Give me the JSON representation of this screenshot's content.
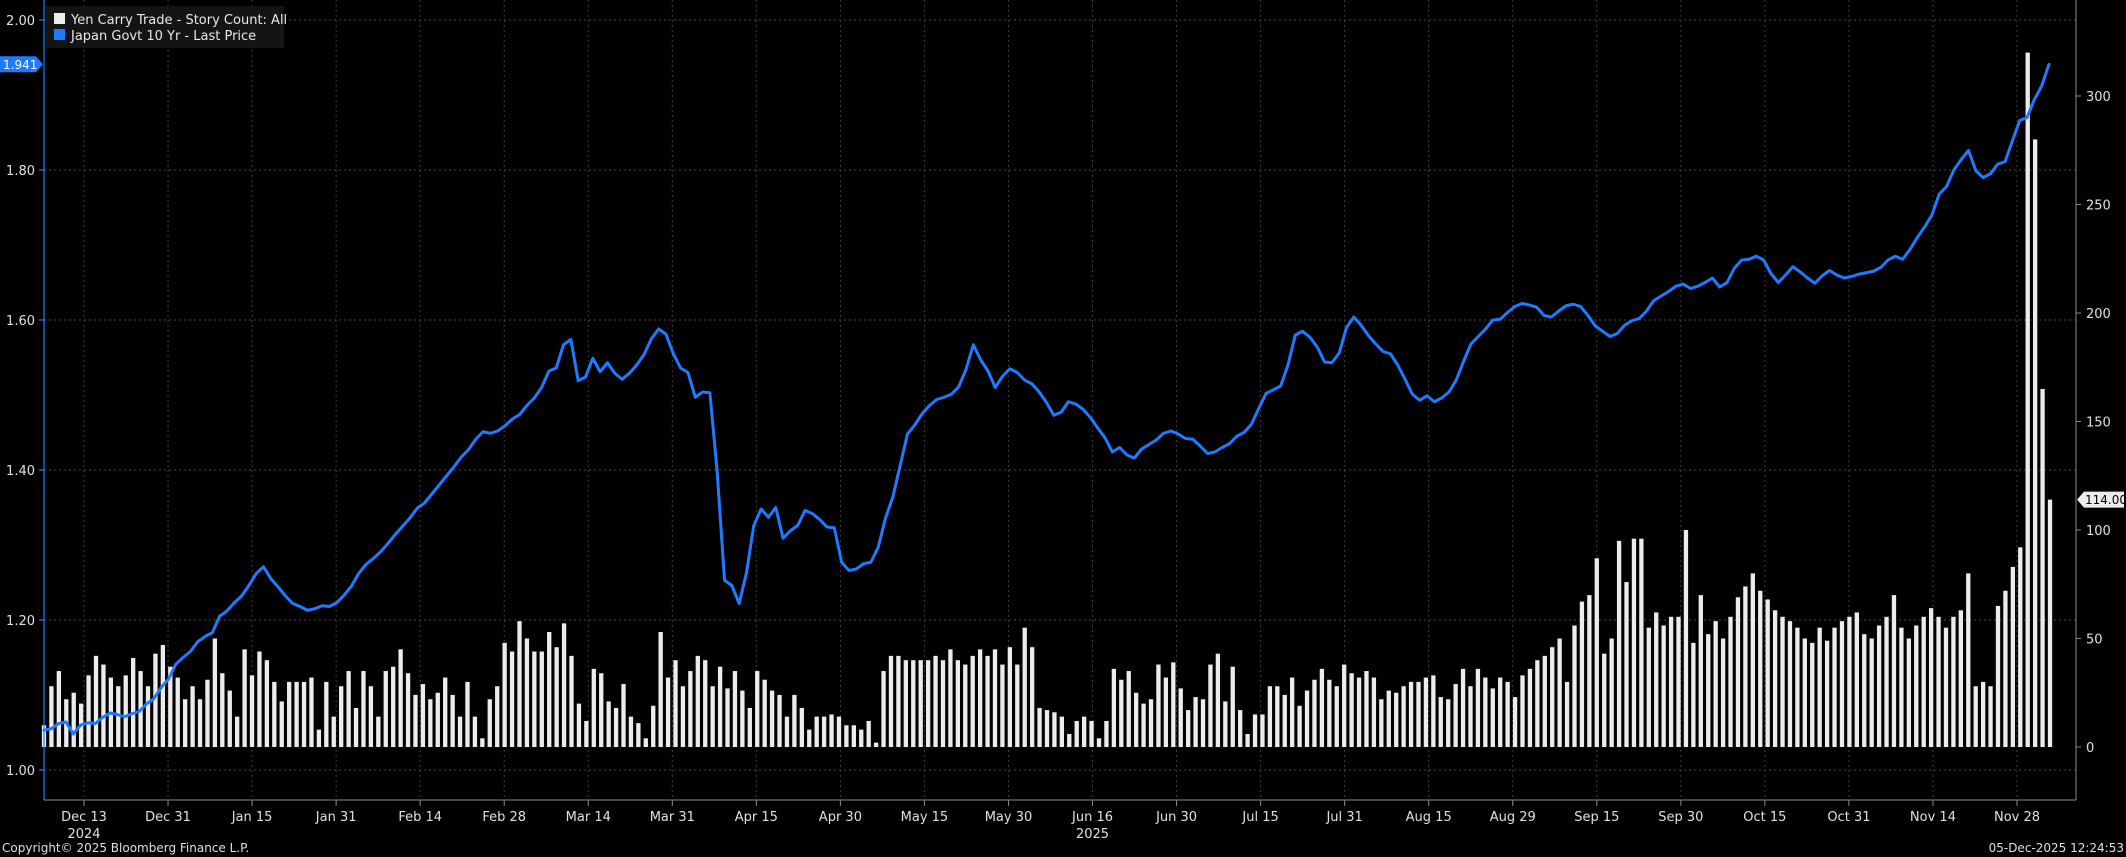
{
  "chart_data": {
    "type": "bar+line",
    "legend": [
      {
        "label": "Yen Carry Trade - Story Count: All",
        "color": "#ececec"
      },
      {
        "label": "Japan Govt 10 Yr - Last Price",
        "color": "#1e7bff"
      }
    ],
    "left_axis": {
      "ticks": [
        1.0,
        1.2,
        1.4,
        1.6,
        1.8,
        2.0
      ],
      "labels": [
        "1.00",
        "1.20",
        "1.40",
        "1.60",
        "1.80",
        "2.00"
      ],
      "range": [
        1.0,
        2.0
      ]
    },
    "right_axis": {
      "ticks": [
        0,
        50,
        100,
        150,
        200,
        250,
        300
      ],
      "labels": [
        "0",
        "50",
        "100",
        "150",
        "200",
        "250",
        "300"
      ],
      "range": [
        0,
        330
      ]
    },
    "x_ticks": [
      "Dec 13",
      "Dec 31",
      "Jan 15",
      "Jan 31",
      "Feb 14",
      "Feb 28",
      "Mar 14",
      "Mar 31",
      "Apr 15",
      "Apr 30",
      "May 15",
      "May 30",
      "Jun 16",
      "Jun 30",
      "Jul 15",
      "Jul 31",
      "Aug 15",
      "Aug 29",
      "Sep 15",
      "Sep 30",
      "Oct 15",
      "Oct 31",
      "Nov 14",
      "Nov 28"
    ],
    "years": [
      {
        "label": "2024",
        "under": "Dec 13"
      },
      {
        "label": "2025",
        "under": "Jun 16"
      }
    ],
    "last_line_badge": "1.941",
    "last_bar_badge": "114.00",
    "line_color": "#1e7bff",
    "bar_color": "#ececec",
    "grid": true,
    "bars": [
      10,
      28,
      35,
      22,
      25,
      20,
      33,
      42,
      38,
      32,
      28,
      33,
      41,
      35,
      28,
      43,
      47,
      37,
      32,
      22,
      28,
      22,
      31,
      50,
      34,
      26,
      14,
      45,
      33,
      44,
      40,
      30,
      21,
      30,
      30,
      30,
      32,
      8,
      30,
      14,
      28,
      35,
      18,
      35,
      28,
      14,
      35,
      37,
      45,
      34,
      24,
      29,
      22,
      25,
      32,
      24,
      14,
      30,
      14,
      4,
      22,
      28,
      48,
      44,
      58,
      50,
      44,
      44,
      53,
      46,
      57,
      42,
      20,
      12,
      36,
      34,
      21,
      18,
      29,
      14,
      11,
      4,
      19,
      53,
      32,
      40,
      28,
      35,
      42,
      40,
      28,
      37,
      27,
      35,
      26,
      18,
      35,
      31,
      26,
      24,
      14,
      24,
      18,
      8,
      14,
      14,
      15,
      14,
      10,
      10,
      8,
      12,
      2,
      35,
      42,
      42,
      40,
      40,
      40,
      40,
      42,
      40,
      45,
      40,
      38,
      42,
      45,
      42,
      45,
      38,
      46,
      38,
      55,
      46,
      18,
      17,
      16,
      14,
      6,
      12,
      14,
      12,
      4,
      12,
      36,
      31,
      35,
      25,
      20,
      22,
      38,
      32,
      39,
      27,
      17,
      23,
      22,
      38,
      43,
      21,
      37,
      17,
      6,
      15,
      15,
      28,
      28,
      24,
      32,
      19,
      26,
      31,
      36,
      31,
      28,
      38,
      34,
      32,
      35,
      32,
      22,
      26,
      25,
      28,
      30,
      30,
      32,
      33,
      23,
      22,
      29,
      36,
      28,
      36,
      32,
      27,
      32,
      30,
      23,
      33,
      36,
      40,
      42,
      46,
      50,
      30,
      56,
      67,
      70,
      87,
      43,
      50,
      95,
      76,
      96,
      96,
      55,
      62,
      56,
      60,
      60,
      100,
      48,
      70,
      52,
      58,
      50,
      60,
      69,
      74,
      80,
      72,
      68,
      63,
      60,
      58,
      55,
      50,
      48,
      55,
      49,
      55,
      58,
      60,
      62,
      52,
      50,
      56,
      60,
      70,
      55,
      50,
      56,
      60,
      64,
      60,
      55,
      60,
      63,
      80,
      28,
      30,
      28,
      65,
      72,
      83,
      92,
      320,
      280,
      165,
      114
    ],
    "line": [
      1.053,
      1.055,
      1.062,
      1.064,
      1.048,
      1.06,
      1.063,
      1.062,
      1.07,
      1.076,
      1.074,
      1.071,
      1.075,
      1.078,
      1.088,
      1.095,
      1.11,
      1.121,
      1.141,
      1.15,
      1.158,
      1.171,
      1.178,
      1.183,
      1.205,
      1.212,
      1.223,
      1.232,
      1.246,
      1.262,
      1.271,
      1.255,
      1.244,
      1.232,
      1.222,
      1.218,
      1.213,
      1.215,
      1.219,
      1.218,
      1.223,
      1.233,
      1.245,
      1.262,
      1.274,
      1.282,
      1.291,
      1.302,
      1.314,
      1.325,
      1.336,
      1.349,
      1.356,
      1.368,
      1.38,
      1.392,
      1.404,
      1.417,
      1.427,
      1.441,
      1.451,
      1.449,
      1.452,
      1.459,
      1.468,
      1.474,
      1.486,
      1.496,
      1.51,
      1.532,
      1.536,
      1.567,
      1.574,
      1.519,
      1.524,
      1.549,
      1.531,
      1.543,
      1.529,
      1.521,
      1.529,
      1.54,
      1.554,
      1.575,
      1.588,
      1.581,
      1.555,
      1.536,
      1.53,
      1.497,
      1.504,
      1.503,
      1.397,
      1.253,
      1.246,
      1.222,
      1.263,
      1.326,
      1.348,
      1.337,
      1.35,
      1.309,
      1.319,
      1.326,
      1.346,
      1.342,
      1.334,
      1.324,
      1.323,
      1.277,
      1.266,
      1.268,
      1.275,
      1.277,
      1.297,
      1.336,
      1.364,
      1.406,
      1.448,
      1.46,
      1.475,
      1.486,
      1.494,
      1.497,
      1.501,
      1.511,
      1.534,
      1.567,
      1.547,
      1.532,
      1.51,
      1.525,
      1.535,
      1.53,
      1.52,
      1.515,
      1.504,
      1.49,
      1.473,
      1.477,
      1.491,
      1.488,
      1.481,
      1.47,
      1.456,
      1.443,
      1.424,
      1.43,
      1.42,
      1.416,
      1.428,
      1.434,
      1.44,
      1.449,
      1.452,
      1.448,
      1.442,
      1.441,
      1.432,
      1.422,
      1.424,
      1.43,
      1.435,
      1.445,
      1.45,
      1.461,
      1.482,
      1.502,
      1.507,
      1.512,
      1.54,
      1.58,
      1.585,
      1.577,
      1.564,
      1.544,
      1.543,
      1.556,
      1.59,
      1.604,
      1.593,
      1.579,
      1.568,
      1.558,
      1.555,
      1.54,
      1.521,
      1.501,
      1.493,
      1.499,
      1.491,
      1.496,
      1.504,
      1.52,
      1.545,
      1.568,
      1.578,
      1.588,
      1.6,
      1.601,
      1.61,
      1.618,
      1.622,
      1.62,
      1.617,
      1.606,
      1.604,
      1.612,
      1.619,
      1.621,
      1.618,
      1.606,
      1.592,
      1.585,
      1.578,
      1.582,
      1.593,
      1.599,
      1.602,
      1.612,
      1.626,
      1.632,
      1.638,
      1.645,
      1.648,
      1.642,
      1.645,
      1.65,
      1.656,
      1.644,
      1.65,
      1.669,
      1.68,
      1.681,
      1.685,
      1.68,
      1.662,
      1.65,
      1.66,
      1.671,
      1.664,
      1.656,
      1.649,
      1.659,
      1.666,
      1.66,
      1.656,
      1.658,
      1.661,
      1.663,
      1.665,
      1.67,
      1.68,
      1.685,
      1.681,
      1.694,
      1.71,
      1.724,
      1.74,
      1.768,
      1.778,
      1.8,
      1.814,
      1.826,
      1.799,
      1.79,
      1.795,
      1.808,
      1.811,
      1.839,
      1.866,
      1.87,
      1.894,
      1.912,
      1.941
    ]
  },
  "footer": {
    "copyright": "Copyright© 2025 Bloomberg Finance L.P.",
    "timestamp": "05-Dec-2025 12:24:53"
  }
}
